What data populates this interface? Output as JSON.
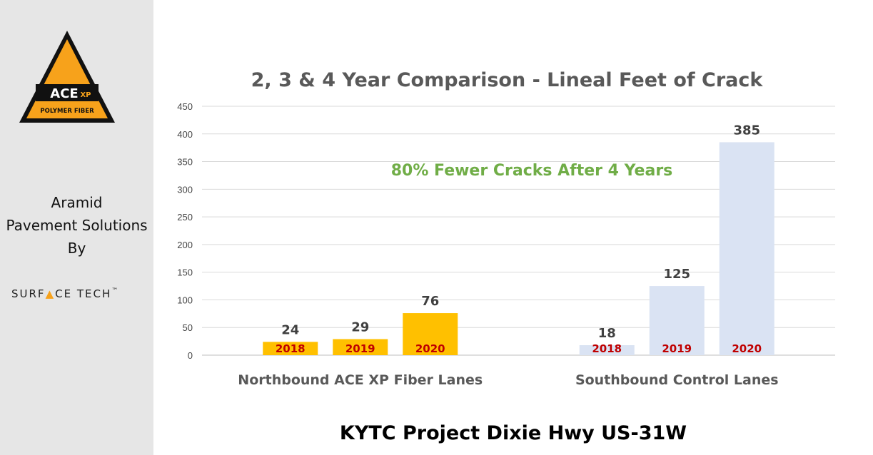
{
  "sidebar": {
    "logo": {
      "main": "ACE",
      "sub": "XP",
      "tagline": "POLYMER FIBER",
      "color": "#f7a21b"
    },
    "lines": [
      "Aramid",
      "Pavement Solutions",
      "By"
    ],
    "brand": {
      "before": "SURF",
      "mark": "▲",
      "after": "CE TECH",
      "tm": "™"
    }
  },
  "footer": "KYTC Project Dixie Hwy US-31W",
  "chart_data": {
    "type": "bar",
    "title": "2, 3 & 4 Year Comparison - Lineal Feet of Crack",
    "annotation": "80% Fewer Cracks After 4 Years",
    "ylim": [
      0,
      450
    ],
    "yticks": [
      0,
      50,
      100,
      150,
      200,
      250,
      300,
      350,
      400,
      450
    ],
    "grid": true,
    "categories": [
      "Northbound ACE XP Fiber Lanes",
      "Southbound Control Lanes"
    ],
    "groups": [
      {
        "category": "Northbound ACE XP Fiber Lanes",
        "color": "#ffc000",
        "bars": [
          {
            "year": "2018",
            "value": 24
          },
          {
            "year": "2019",
            "value": 29
          },
          {
            "year": "2020",
            "value": 76
          }
        ]
      },
      {
        "category": "Southbound Control Lanes",
        "color": "#dae3f3",
        "bars": [
          {
            "year": "2018",
            "value": 18
          },
          {
            "year": "2019",
            "value": 125
          },
          {
            "year": "2020",
            "value": 385
          }
        ]
      }
    ]
  }
}
